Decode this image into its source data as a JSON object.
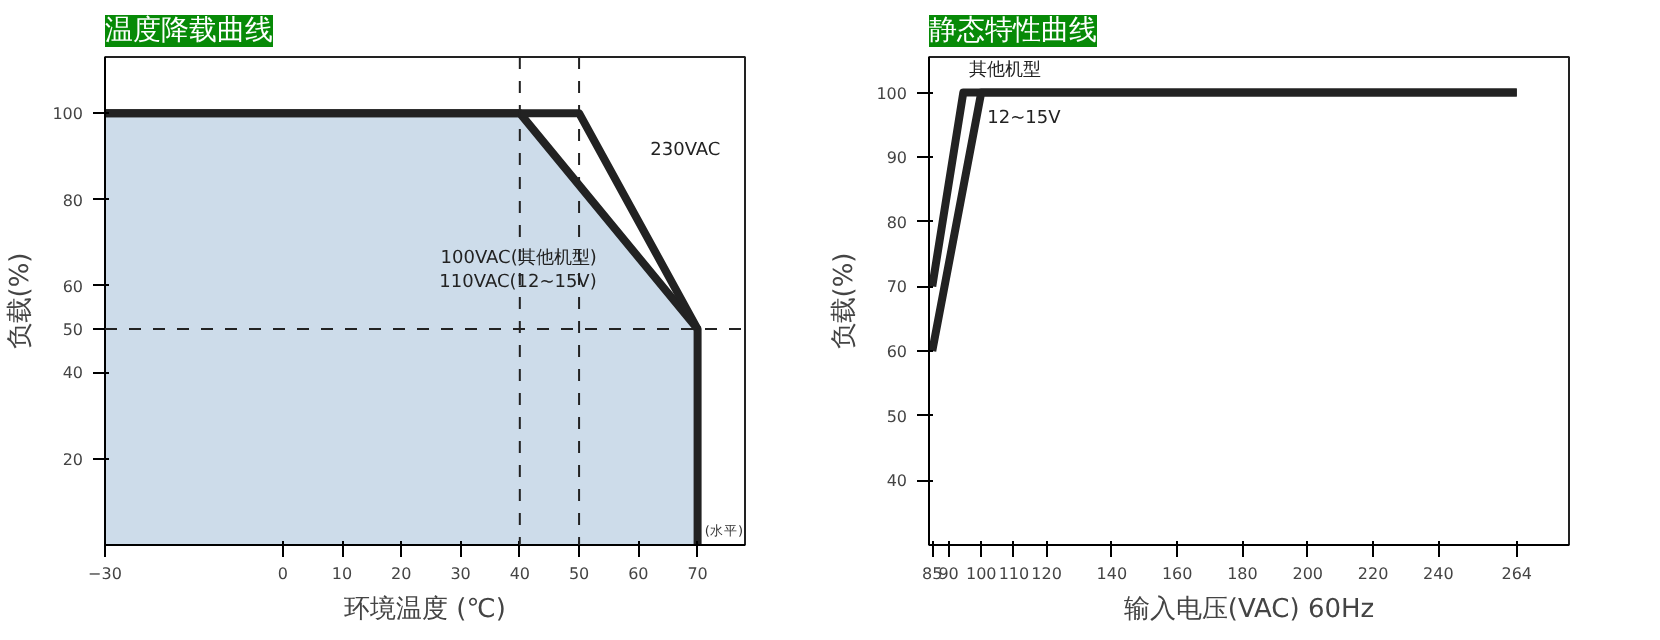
{
  "chart_data": [
    {
      "type": "line",
      "title": "温度降载曲线",
      "xlabel": "环境温度 (℃)",
      "ylabel": "负载(%)",
      "xlim": [
        -30,
        78
      ],
      "xticks": [
        -30,
        0,
        10,
        20,
        30,
        40,
        50,
        60,
        70
      ],
      "ylim": [
        0,
        113
      ],
      "yticks": [
        20,
        40,
        50,
        60,
        80,
        100
      ],
      "series": [
        {
          "name": "100VAC(其他机型)\n110VAC(12~15V)",
          "type": "area",
          "color": "#cddcea",
          "x": [
            -30,
            40,
            70,
            70
          ],
          "values": [
            100,
            100,
            50,
            0
          ]
        },
        {
          "name": "230VAC",
          "color": "#222222",
          "x": [
            -30,
            50,
            70
          ],
          "values": [
            100,
            100,
            50
          ]
        }
      ],
      "ref_lines": [
        {
          "axis": "x",
          "value": 40,
          "line_style": "dashed"
        },
        {
          "axis": "x",
          "value": 50,
          "line_style": "dashed"
        },
        {
          "axis": "y",
          "value": 50,
          "line_style": "dashed"
        }
      ],
      "annotations": [
        "(水平)"
      ],
      "grid": false
    },
    {
      "type": "line",
      "title": "静态特性曲线",
      "xlabel": "输入电压(VAC) 60Hz",
      "ylabel": "负载(%)",
      "xlim": [
        84,
        280
      ],
      "xticks": [
        85,
        90,
        100,
        110,
        120,
        140,
        160,
        180,
        200,
        220,
        240,
        264
      ],
      "ylim": [
        30,
        105.5
      ],
      "yticks": [
        40,
        50,
        60,
        70,
        80,
        90,
        100
      ],
      "series": [
        {
          "name": "其他机型",
          "color": "#222222",
          "x": [
            85,
            94.5,
            264
          ],
          "values": [
            70,
            100,
            100
          ]
        },
        {
          "name": "12~15V",
          "color": "#222222",
          "x": [
            85,
            100,
            264
          ],
          "values": [
            60,
            100,
            100
          ]
        }
      ],
      "grid": false
    }
  ]
}
